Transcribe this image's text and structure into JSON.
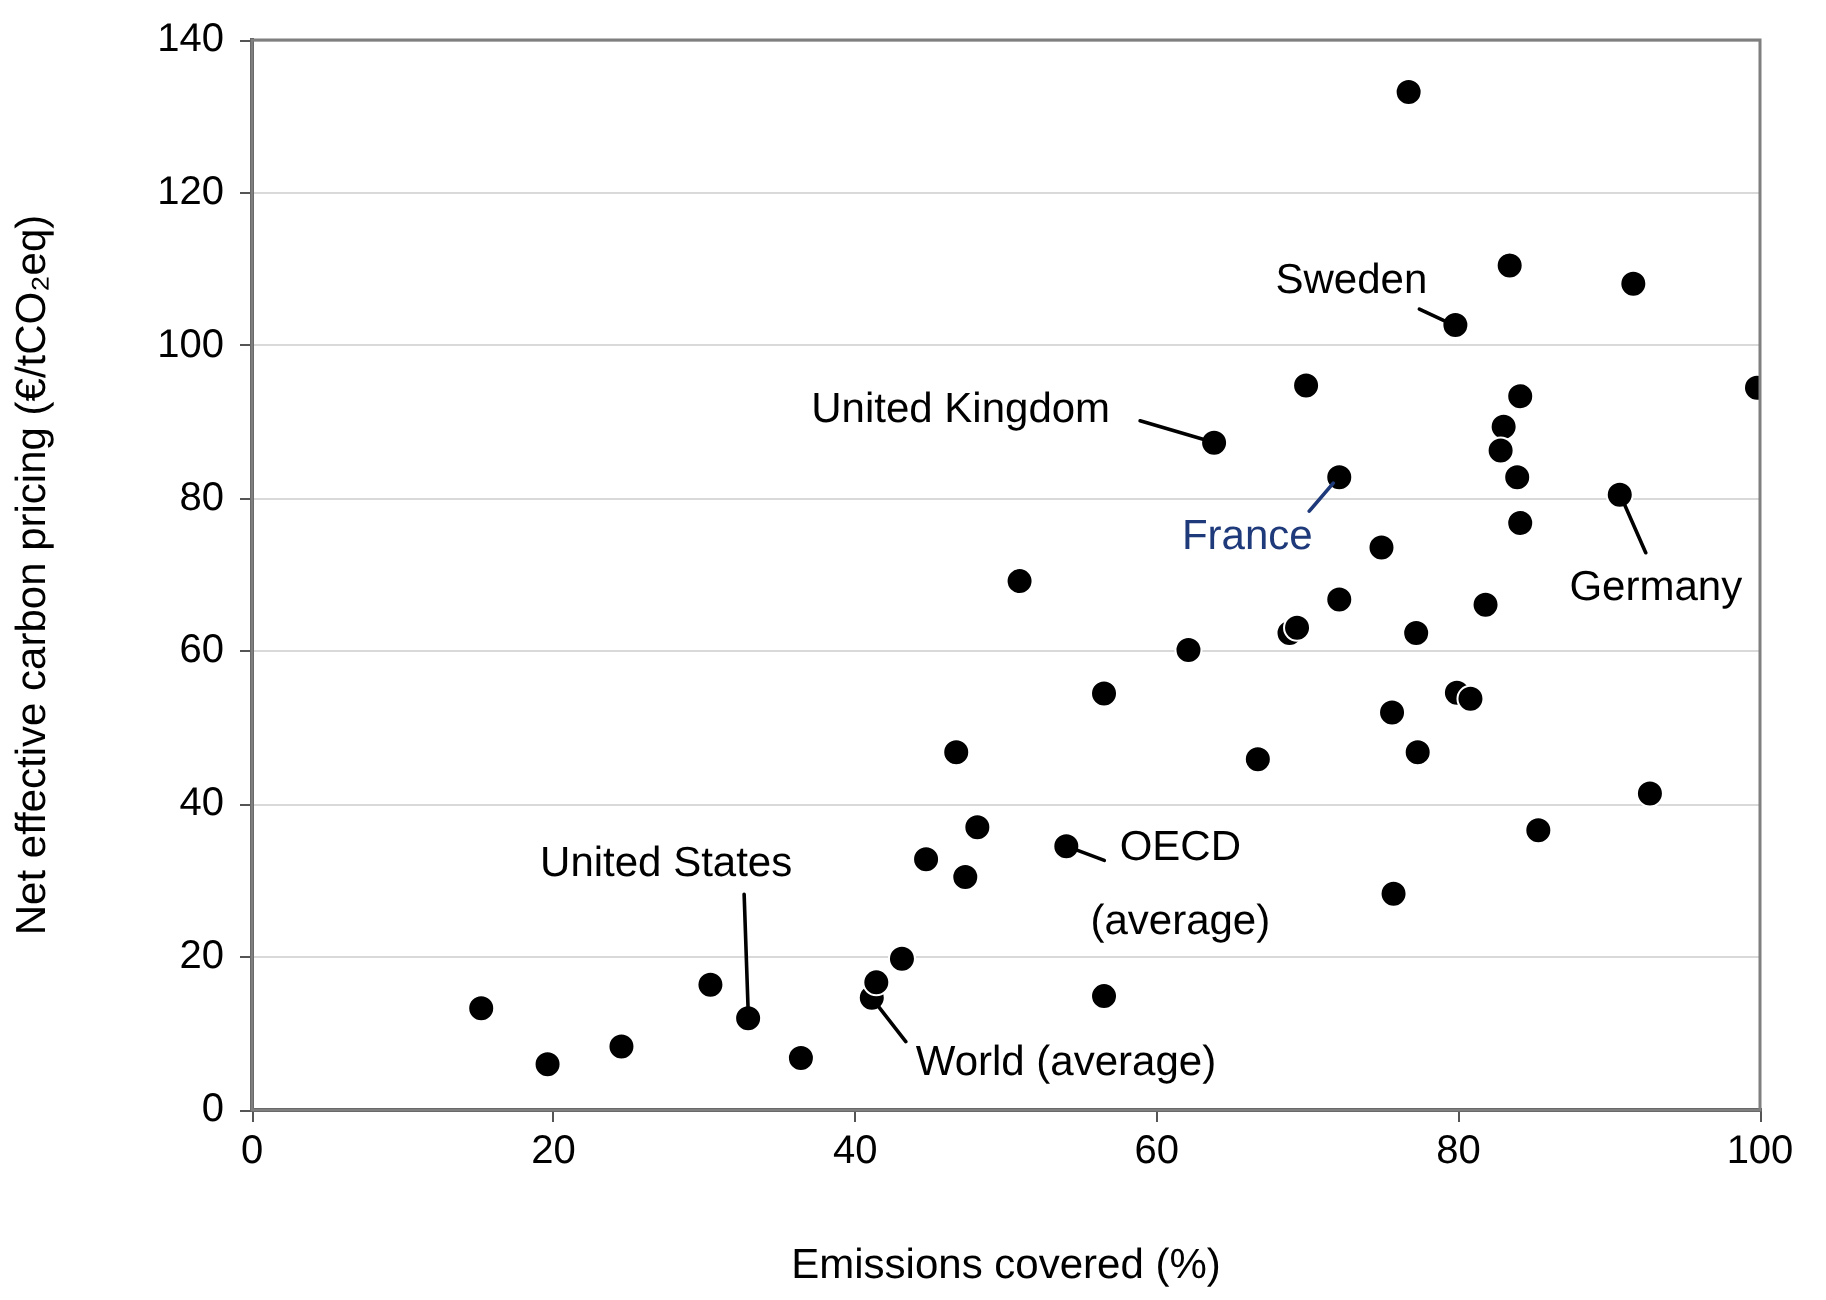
{
  "chart_data": {
    "type": "scatter",
    "xlabel": "Emissions covered (%)",
    "ylabel": "Net effective carbon pricing (€/tCO₂eq)",
    "xlim": [
      0,
      100
    ],
    "xticks": [
      0,
      20,
      40,
      60,
      80,
      100
    ],
    "ylim": [
      0,
      140
    ],
    "yticks": [
      0,
      20,
      40,
      60,
      80,
      100,
      120,
      140
    ],
    "grid": "y",
    "legend": false,
    "marker": "circle",
    "series": [
      {
        "color": "#000000",
        "x": [
          15.2,
          19.6,
          24.5,
          30.4,
          32.9,
          36.4,
          41.1,
          41.4,
          43.1,
          46.7,
          48.1,
          44.7,
          47.3,
          54.0,
          56.5,
          56.5,
          76.7,
          83.4,
          91.6,
          79.8,
          69.9,
          99.8,
          84.1,
          83.0,
          82.8,
          63.8,
          83.9,
          72.1,
          90.7,
          84.1,
          74.9,
          50.9,
          72.1,
          81.8,
          62.1,
          68.8,
          69.3,
          77.2,
          75.6,
          79.9,
          80.8,
          66.7,
          77.3,
          92.7,
          85.3,
          75.7
        ],
        "values": [
          13.3,
          6.0,
          8.3,
          16.4,
          12.0,
          6.8,
          14.7,
          16.7,
          19.8,
          46.8,
          37.0,
          32.8,
          30.5,
          34.5,
          54.5,
          14.9,
          133.2,
          110.5,
          108.1,
          102.7,
          94.8,
          94.5,
          93.4,
          89.4,
          86.3,
          87.3,
          82.8,
          82.8,
          80.5,
          76.8,
          73.6,
          69.2,
          66.8,
          66.1,
          60.2,
          62.4,
          63.1,
          62.4,
          52.0,
          54.6,
          53.8,
          45.9,
          46.8,
          41.4,
          36.6,
          28.3
        ]
      }
    ],
    "annotations": [
      {
        "text": "United States",
        "x": 32.9,
        "y": 12.0
      },
      {
        "text": "World (average)",
        "x": 41.1,
        "y": 14.7
      },
      {
        "text": "OECD (average)",
        "x": 54.0,
        "y": 34.5
      },
      {
        "text": "United Kingdom",
        "x": 63.8,
        "y": 87.3
      },
      {
        "text": "France",
        "x": 72.1,
        "y": 82.8
      },
      {
        "text": "Sweden",
        "x": 79.8,
        "y": 102.7
      },
      {
        "text": "Germany",
        "x": 90.7,
        "y": 80.5
      }
    ]
  }
}
